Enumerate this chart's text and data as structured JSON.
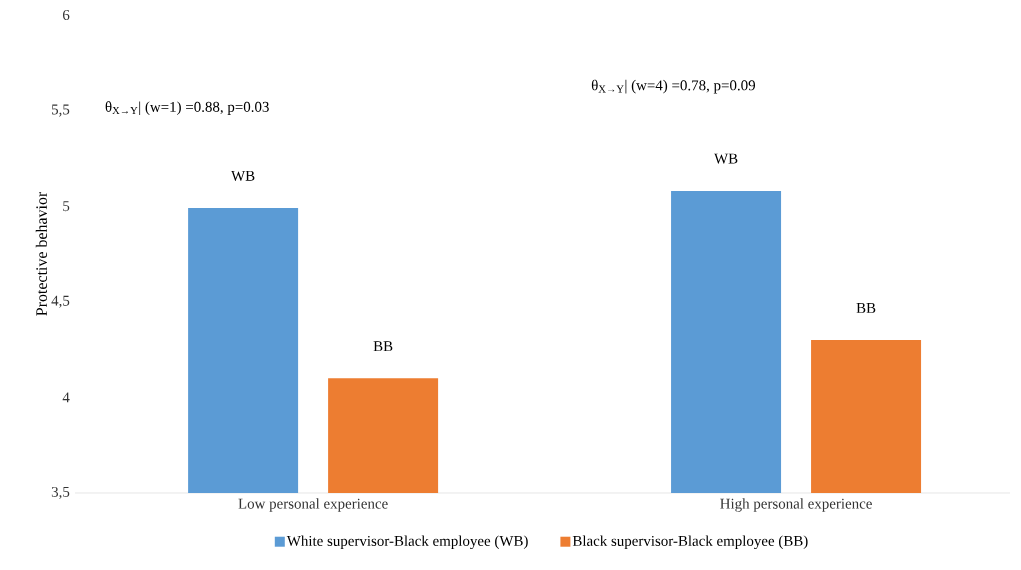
{
  "chart_data": {
    "type": "bar",
    "ylabel": "Protective behavior",
    "categories": [
      "Low personal experience",
      "High personal experience"
    ],
    "series": [
      {
        "name": "White supervisor-Black employee (WB)",
        "color": "#5b9bd5",
        "values": [
          4.99,
          5.08
        ],
        "value_labels": [
          "WB",
          "WB"
        ]
      },
      {
        "name": "Black supervisor-Black employee (BB)",
        "color": "#ed7d31",
        "values": [
          4.1,
          4.3
        ],
        "value_labels": [
          "BB",
          "BB"
        ]
      }
    ],
    "ylim": [
      3.5,
      6
    ],
    "yticks": [
      {
        "value": 3.5,
        "label": "3,5"
      },
      4,
      {
        "value": 4.5,
        "label": "4,5"
      },
      5,
      {
        "value": 5.5,
        "label": "5,5"
      },
      6
    ],
    "annotations": [
      "θ$_{X→Y}$| (w=1) =0.88, p=0.03",
      "θ$_{X→Y}$| (w=4) =0.78, p=0.09"
    ],
    "grid": false,
    "legend": "bottom"
  }
}
